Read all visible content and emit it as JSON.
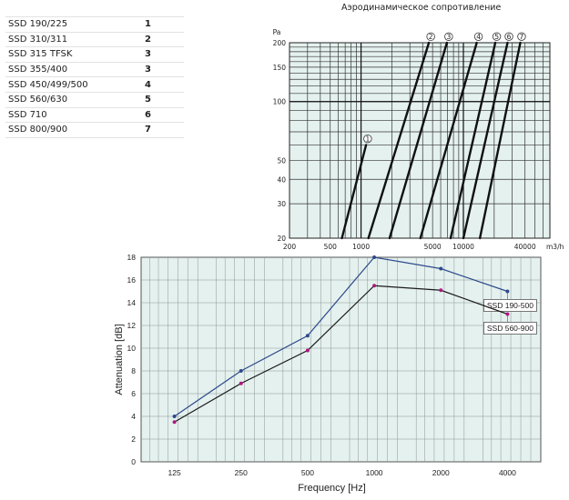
{
  "table": {
    "rows": [
      {
        "model": "SSD 190/225",
        "curve": "1"
      },
      {
        "model": "SSD 310/311",
        "curve": "2"
      },
      {
        "model": "SSD 315 TFSK",
        "curve": "3"
      },
      {
        "model": "SSD 355/400",
        "curve": "3"
      },
      {
        "model": "SSD 450/499/500",
        "curve": "4"
      },
      {
        "model": "SSD 560/630",
        "curve": "5"
      },
      {
        "model": "SSD 710",
        "curve": "6"
      },
      {
        "model": "SSD 800/900",
        "curve": "7"
      }
    ]
  },
  "chart_data": [
    {
      "type": "line",
      "title": "Аэродинамическое сопротивление",
      "xlabel": "m3/h",
      "ylabel": "Pa",
      "xscale": "log",
      "yscale": "log",
      "xlim": [
        200,
        70000
      ],
      "ylim": [
        20,
        200
      ],
      "grid": true,
      "background_color": "#e4f1ee",
      "x_ticks": [
        "200",
        "500",
        "1000",
        "5000",
        "10000",
        "40000"
      ],
      "y_ticks": [
        "20",
        "30",
        "40",
        "50",
        "100",
        "150",
        "200"
      ],
      "series": [
        {
          "name": "1",
          "points": [
            [
              650,
              20
            ],
            [
              1120,
              60
            ]
          ]
        },
        {
          "name": "2",
          "points": [
            [
              1180,
              20
            ],
            [
              4600,
              200
            ]
          ]
        },
        {
          "name": "3",
          "points": [
            [
              1900,
              20
            ],
            [
              6900,
              200
            ]
          ]
        },
        {
          "name": "4",
          "points": [
            [
              3800,
              20
            ],
            [
              13500,
              200
            ]
          ]
        },
        {
          "name": "5",
          "points": [
            [
              7500,
              20
            ],
            [
              20500,
              200
            ]
          ]
        },
        {
          "name": "6",
          "points": [
            [
              10000,
              20
            ],
            [
              27000,
              200
            ]
          ]
        },
        {
          "name": "7",
          "points": [
            [
              14500,
              20
            ],
            [
              36000,
              200
            ]
          ]
        }
      ]
    },
    {
      "type": "line",
      "xlabel": "Frequency [Hz]",
      "ylabel": "Attenuation [dB]",
      "categories": [
        "125",
        "250",
        "500",
        "1000",
        "2000",
        "4000"
      ],
      "ylim": [
        0,
        18
      ],
      "y_ticks": [
        "0",
        "2",
        "4",
        "6",
        "8",
        "10",
        "12",
        "14",
        "16",
        "18"
      ],
      "grid": true,
      "background_color": "#e4f1ee",
      "series": [
        {
          "name": "SSD 190-500",
          "values": [
            4,
            8,
            11.1,
            18,
            17,
            15
          ],
          "color": "#2e4a8c",
          "marker_color": "#2e4a8c"
        },
        {
          "name": "SSD 560-900",
          "values": [
            3.5,
            6.9,
            9.8,
            15.5,
            15.1,
            13
          ],
          "color": "#1a1a1a",
          "marker_color": "#b0177e"
        }
      ]
    }
  ]
}
